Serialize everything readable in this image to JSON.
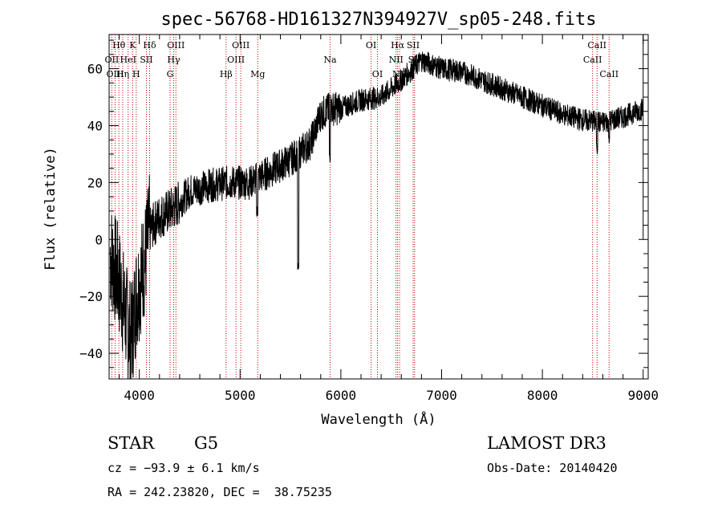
{
  "chart_data": {
    "type": "line",
    "title": "spec-56768-HD161327N394927V_sp05-248.fits",
    "xlabel": "Wavelength (Å)",
    "ylabel": "Flux (relative)",
    "xlim": [
      3700,
      9050
    ],
    "ylim": [
      -49,
      72
    ],
    "xticks": [
      4000,
      5000,
      6000,
      7000,
      8000,
      9000
    ],
    "yticks": [
      -40,
      -20,
      0,
      20,
      40,
      60
    ],
    "line_color": "#000000",
    "marker_color": "#cc0000",
    "spectrum_anchors": [
      {
        "x": 3710,
        "y": -5
      },
      {
        "x": 3800,
        "y": -15
      },
      {
        "x": 3870,
        "y": -28
      },
      {
        "x": 3920,
        "y": -35
      },
      {
        "x": 3970,
        "y": -20
      },
      {
        "x": 4050,
        "y": -8
      },
      {
        "x": 4100,
        "y": 3
      },
      {
        "x": 4200,
        "y": 8
      },
      {
        "x": 4300,
        "y": 10
      },
      {
        "x": 4400,
        "y": 13
      },
      {
        "x": 4500,
        "y": 17
      },
      {
        "x": 4700,
        "y": 19
      },
      {
        "x": 4900,
        "y": 20
      },
      {
        "x": 5100,
        "y": 20
      },
      {
        "x": 5300,
        "y": 24
      },
      {
        "x": 5500,
        "y": 28
      },
      {
        "x": 5700,
        "y": 34
      },
      {
        "x": 5800,
        "y": 44
      },
      {
        "x": 5900,
        "y": 46
      },
      {
        "x": 6000,
        "y": 46
      },
      {
        "x": 6200,
        "y": 49
      },
      {
        "x": 6400,
        "y": 50
      },
      {
        "x": 6600,
        "y": 56
      },
      {
        "x": 6800,
        "y": 63
      },
      {
        "x": 7000,
        "y": 60
      },
      {
        "x": 7200,
        "y": 59
      },
      {
        "x": 7400,
        "y": 56
      },
      {
        "x": 7600,
        "y": 53
      },
      {
        "x": 7800,
        "y": 50
      },
      {
        "x": 8000,
        "y": 47
      },
      {
        "x": 8200,
        "y": 44
      },
      {
        "x": 8400,
        "y": 42
      },
      {
        "x": 8600,
        "y": 41
      },
      {
        "x": 8800,
        "y": 43
      },
      {
        "x": 9000,
        "y": 46
      }
    ],
    "absorption_features": [
      {
        "x": 5577,
        "y": -12
      },
      {
        "x": 5890,
        "y": 27
      },
      {
        "x": 8542,
        "y": 30
      },
      {
        "x": 8662,
        "y": 33
      },
      {
        "x": 5170,
        "y": 8
      }
    ],
    "lines": [
      {
        "label": "Hθ",
        "wavelength": 3797,
        "row": 0
      },
      {
        "label": "OII",
        "wavelength": 3727,
        "row": 1
      },
      {
        "label": "OIII",
        "wavelength": 3760,
        "row": 2
      },
      {
        "label": "K",
        "wavelength": 3934,
        "row": 0
      },
      {
        "label": "HeI",
        "wavelength": 3889,
        "row": 1
      },
      {
        "label": "Hη",
        "wavelength": 3835,
        "row": 2
      },
      {
        "label": "SII",
        "wavelength": 4070,
        "row": 1
      },
      {
        "label": "H",
        "wavelength": 3969,
        "row": 2
      },
      {
        "label": "Hδ",
        "wavelength": 4102,
        "row": 0
      },
      {
        "label": "OIII",
        "wavelength": 4363,
        "row": 0
      },
      {
        "label": "Hγ",
        "wavelength": 4341,
        "row": 1
      },
      {
        "label": "G",
        "wavelength": 4305,
        "row": 2
      },
      {
        "label": "Hβ",
        "wavelength": 4861,
        "row": 2
      },
      {
        "label": "OIII",
        "wavelength": 5007,
        "row": 0
      },
      {
        "label": "OIII",
        "wavelength": 4959,
        "row": 1
      },
      {
        "label": "Mg",
        "wavelength": 5175,
        "row": 2
      },
      {
        "label": "Na",
        "wavelength": 5893,
        "row": 1
      },
      {
        "label": "OI",
        "wavelength": 6300,
        "row": 0
      },
      {
        "label": "OI",
        "wavelength": 6363,
        "row": 2
      },
      {
        "label": "Hα",
        "wavelength": 6563,
        "row": 0
      },
      {
        "label": "NII",
        "wavelength": 6548,
        "row": 1
      },
      {
        "label": "NII",
        "wavelength": 6583,
        "row": 2
      },
      {
        "label": "SII",
        "wavelength": 6717,
        "row": 0
      },
      {
        "label": "SII",
        "wavelength": 6731,
        "row": 1
      },
      {
        "label": "CaII",
        "wavelength": 8542,
        "row": 0
      },
      {
        "label": "CaII",
        "wavelength": 8498,
        "row": 1
      },
      {
        "label": "CaII",
        "wavelength": 8662,
        "row": 2
      }
    ]
  },
  "info": {
    "object_class": "STAR",
    "subclass": "G5",
    "survey": "LAMOST DR3",
    "cz": "cz = −93.9 ± 6.1 km/s",
    "obs_date": "Obs-Date: 20140420",
    "coords": "RA = 242.23820, DEC =  38.75235"
  }
}
